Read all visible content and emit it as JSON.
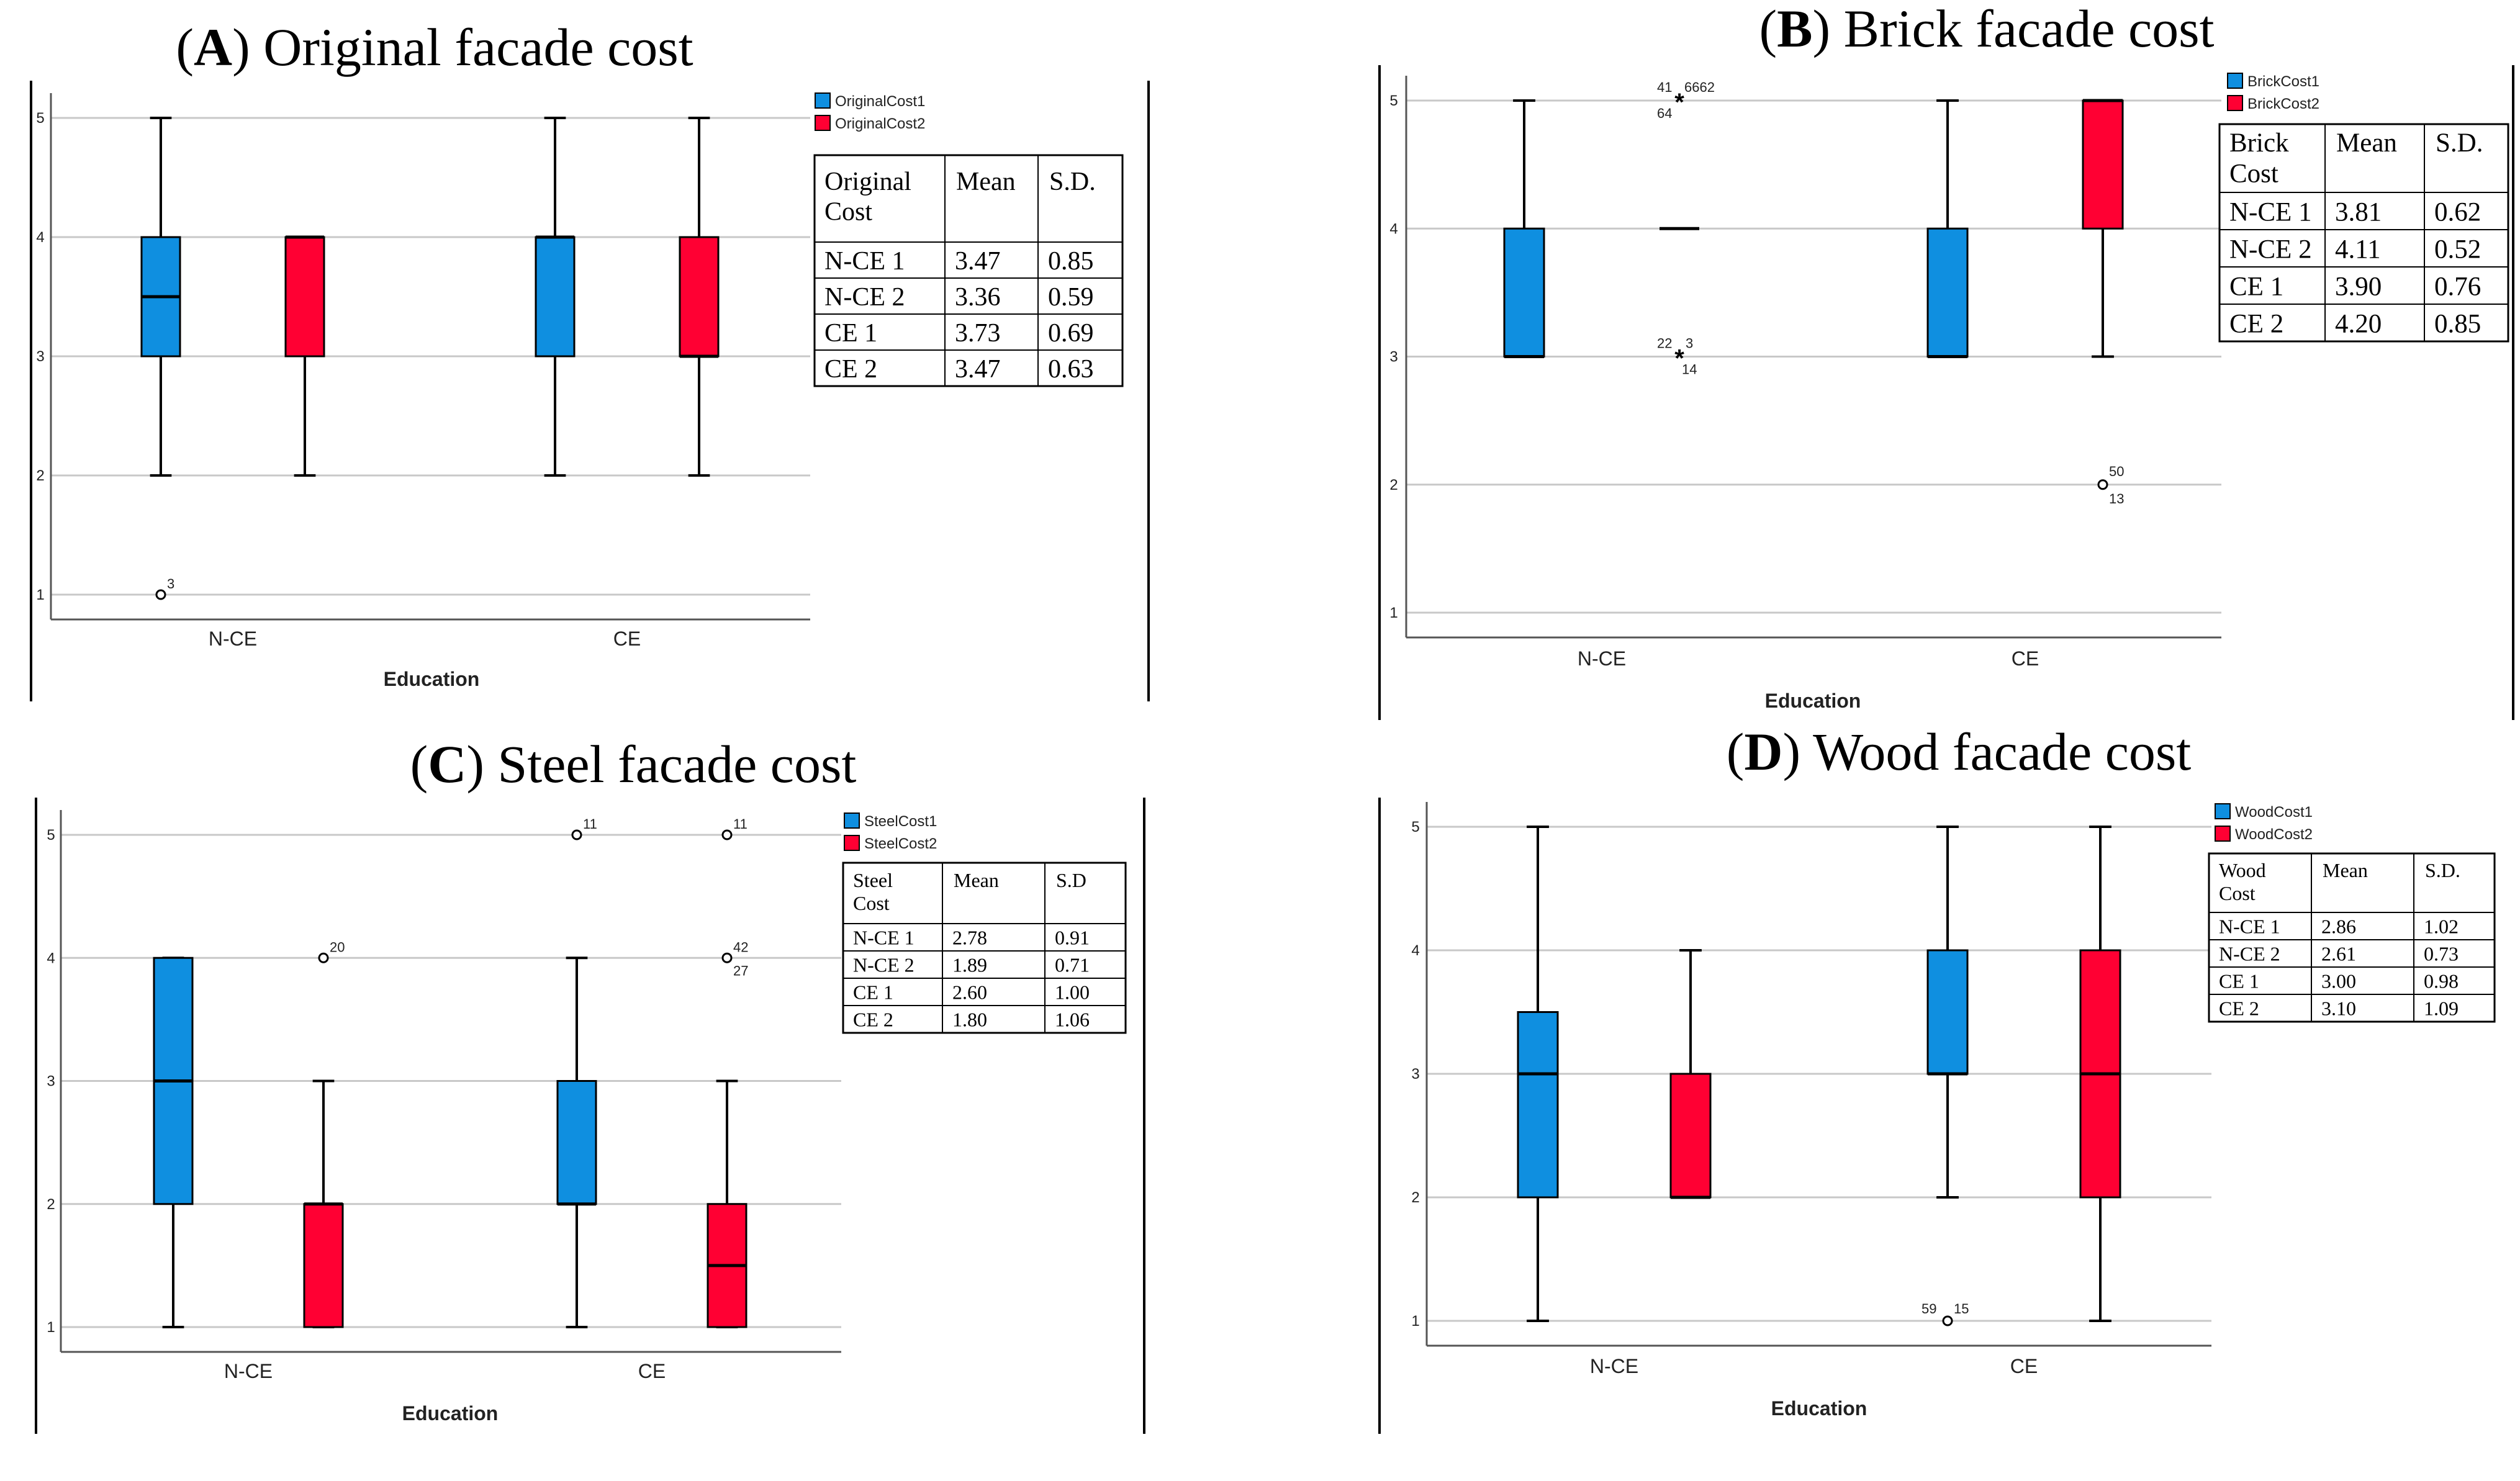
{
  "figure": {
    "panels": [
      {
        "letter": "A",
        "title": " Original facade cost",
        "xlabel": "Education",
        "chart_data": {
          "type": "box",
          "title": "(A) Original facade cost",
          "xlabel": "Education",
          "ylabel": "",
          "ylim": [
            1,
            5
          ],
          "yticks": [
            1,
            2,
            3,
            4,
            5
          ],
          "categories": [
            "N-CE",
            "CE"
          ],
          "series": [
            {
              "name": "OriginalCost1",
              "color": "#0f8fe0",
              "boxes": [
                {
                  "category": "N-CE",
                  "min": 2,
                  "q1": 3,
                  "median": 3.5,
                  "q3": 4,
                  "max": 5,
                  "outliers": [
                    {
                      "value": 1,
                      "symbol": "o",
                      "labels": [
                        "3"
                      ]
                    }
                  ]
                },
                {
                  "category": "CE",
                  "min": 2,
                  "q1": 3,
                  "median": 4,
                  "q3": 4,
                  "max": 5,
                  "outliers": []
                }
              ]
            },
            {
              "name": "OriginalCost2",
              "color": "#ff0033",
              "boxes": [
                {
                  "category": "N-CE",
                  "min": 2,
                  "q1": 3,
                  "median": 4,
                  "q3": 4,
                  "max": 4,
                  "outliers": []
                },
                {
                  "category": "CE",
                  "min": 2,
                  "q1": 3,
                  "median": 3,
                  "q3": 4,
                  "max": 5,
                  "outliers": []
                }
              ]
            }
          ],
          "table": {
            "header": [
              "Original Cost",
              "Mean",
              "S.D."
            ],
            "rows": [
              [
                "N-CE 1",
                "3.47",
                "0.85"
              ],
              [
                "N-CE 2",
                "3.36",
                "0.59"
              ],
              [
                "CE 1",
                "3.73",
                "0.69"
              ],
              [
                "CE 2",
                "3.47",
                "0.63"
              ]
            ]
          }
        }
      },
      {
        "letter": "B",
        "title": " Brick facade cost",
        "xlabel": "Education",
        "chart_data": {
          "type": "box",
          "title": "(B) Brick facade cost",
          "xlabel": "Education",
          "ylabel": "",
          "ylim": [
            1,
            5
          ],
          "yticks": [
            1,
            2,
            3,
            4,
            5
          ],
          "categories": [
            "N-CE",
            "CE"
          ],
          "series": [
            {
              "name": "BrickCost1",
              "color": "#0f8fe0",
              "boxes": [
                {
                  "category": "N-CE",
                  "min": 3,
                  "q1": 3,
                  "median": 3,
                  "q3": 4,
                  "max": 5,
                  "outliers": []
                },
                {
                  "category": "CE",
                  "min": 3,
                  "q1": 3,
                  "median": 3,
                  "q3": 4,
                  "max": 5,
                  "outliers": []
                }
              ]
            },
            {
              "name": "BrickCost2",
              "color": "#ff0033",
              "boxes": [
                {
                  "category": "N-CE",
                  "min": 4,
                  "q1": 4,
                  "median": 4,
                  "q3": 4,
                  "max": 4,
                  "outliers": [
                    {
                      "value": 5,
                      "symbol": "*",
                      "labels": [
                        "41",
                        "6662",
                        "64"
                      ]
                    },
                    {
                      "value": 3,
                      "symbol": "*",
                      "labels": [
                        "22",
                        "3",
                        "14"
                      ]
                    }
                  ]
                },
                {
                  "category": "CE",
                  "min": 3,
                  "q1": 4,
                  "median": 5,
                  "q3": 5,
                  "max": 5,
                  "outliers": [
                    {
                      "value": 2,
                      "symbol": "o",
                      "labels": [
                        "50",
                        "13"
                      ]
                    }
                  ]
                }
              ]
            }
          ],
          "table": {
            "header": [
              "Brick Cost",
              "Mean",
              "S.D."
            ],
            "rows": [
              [
                "N-CE 1",
                "3.81",
                "0.62"
              ],
              [
                "N-CE 2",
                "4.11",
                "0.52"
              ],
              [
                "CE 1",
                "3.90",
                "0.76"
              ],
              [
                "CE 2",
                "4.20",
                "0.85"
              ]
            ]
          }
        }
      },
      {
        "letter": "C",
        "title": " Steel facade cost",
        "xlabel": "Education",
        "chart_data": {
          "type": "box",
          "title": "(C) Steel facade cost",
          "xlabel": "Education",
          "ylabel": "",
          "ylim": [
            1,
            5
          ],
          "yticks": [
            1,
            2,
            3,
            4,
            5
          ],
          "categories": [
            "N-CE",
            "CE"
          ],
          "series": [
            {
              "name": "SteelCost1",
              "color": "#0f8fe0",
              "boxes": [
                {
                  "category": "N-CE",
                  "min": 1,
                  "q1": 2,
                  "median": 3,
                  "q3": 4,
                  "max": 4,
                  "outliers": []
                },
                {
                  "category": "CE",
                  "min": 1,
                  "q1": 2,
                  "median": 2,
                  "q3": 3,
                  "max": 4,
                  "outliers": [
                    {
                      "value": 5,
                      "symbol": "o",
                      "labels": [
                        "11"
                      ]
                    }
                  ]
                }
              ]
            },
            {
              "name": "SteelCost2",
              "color": "#ff0033",
              "boxes": [
                {
                  "category": "N-CE",
                  "min": 1,
                  "q1": 1,
                  "median": 2,
                  "q3": 2,
                  "max": 3,
                  "outliers": [
                    {
                      "value": 4,
                      "symbol": "o",
                      "labels": [
                        "20"
                      ]
                    }
                  ]
                },
                {
                  "category": "CE",
                  "min": 1,
                  "q1": 1,
                  "median": 1.5,
                  "q3": 2,
                  "max": 3,
                  "outliers": [
                    {
                      "value": 5,
                      "symbol": "o",
                      "labels": [
                        "11"
                      ]
                    },
                    {
                      "value": 4,
                      "symbol": "o",
                      "labels": [
                        "42",
                        "27"
                      ]
                    }
                  ]
                }
              ]
            }
          ],
          "table": {
            "header": [
              "Steel Cost",
              "Mean",
              "S.D"
            ],
            "rows": [
              [
                "N-CE 1",
                "2.78",
                "0.91"
              ],
              [
                "N-CE 2",
                "1.89",
                "0.71"
              ],
              [
                "CE 1",
                "2.60",
                "1.00"
              ],
              [
                "CE 2",
                "1.80",
                "1.06"
              ]
            ]
          }
        }
      },
      {
        "letter": "D",
        "title": " Wood facade cost",
        "xlabel": "Education",
        "chart_data": {
          "type": "box",
          "title": "(D) Wood facade cost",
          "xlabel": "Education",
          "ylabel": "",
          "ylim": [
            1,
            5
          ],
          "yticks": [
            1,
            2,
            3,
            4,
            5
          ],
          "categories": [
            "N-CE",
            "CE"
          ],
          "series": [
            {
              "name": "WoodCost1",
              "color": "#0f8fe0",
              "boxes": [
                {
                  "category": "N-CE",
                  "min": 1,
                  "q1": 2,
                  "median": 3,
                  "q3": 3.5,
                  "max": 5,
                  "outliers": []
                },
                {
                  "category": "CE",
                  "min": 2,
                  "q1": 3,
                  "median": 3,
                  "q3": 4,
                  "max": 5,
                  "outliers": [
                    {
                      "value": 1,
                      "symbol": "o",
                      "labels": [
                        "59",
                        "15"
                      ]
                    }
                  ]
                }
              ]
            },
            {
              "name": "WoodCost2",
              "color": "#ff0033",
              "boxes": [
                {
                  "category": "N-CE",
                  "min": 2,
                  "q1": 2,
                  "median": 2,
                  "q3": 3,
                  "max": 4,
                  "outliers": []
                },
                {
                  "category": "CE",
                  "min": 1,
                  "q1": 2,
                  "median": 3,
                  "q3": 4,
                  "max": 5,
                  "outliers": []
                }
              ]
            }
          ],
          "table": {
            "header": [
              "Wood Cost",
              "Mean",
              "S.D."
            ],
            "rows": [
              [
                "N-CE 1",
                "2.86",
                "1.02"
              ],
              [
                "N-CE 2",
                "2.61",
                "0.73"
              ],
              [
                "CE 1",
                "3.00",
                "0.98"
              ],
              [
                "CE 2",
                "3.10",
                "1.09"
              ]
            ]
          }
        }
      }
    ]
  }
}
